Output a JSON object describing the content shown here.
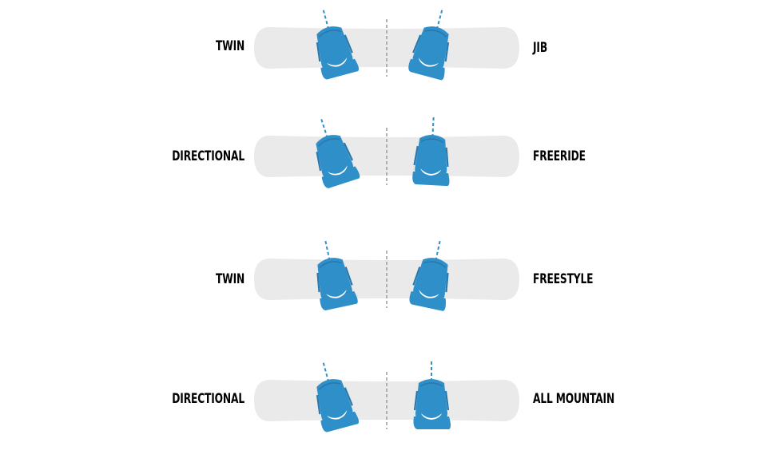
{
  "colors": {
    "accent": "#2f8fc8",
    "board": "#eaeaea",
    "binding_dark": "#2a78ad",
    "binding_light": "#d9eaf5",
    "centerline": "#9a9a9a"
  },
  "rows": [
    {
      "left_label": "TWIN",
      "right_label": "JIB",
      "front_angle_deg": 15,
      "back_angle_deg": 15
    },
    {
      "left_label": "DIRECTIONAL",
      "right_label": "FREERIDE",
      "front_angle_deg": 18,
      "back_angle_deg": 3
    },
    {
      "left_label": "TWIN",
      "right_label": "FREESTYLE",
      "front_angle_deg": 12,
      "back_angle_deg": 12
    },
    {
      "left_label": "DIRECTIONAL",
      "right_label": "ALL MOUNTAIN",
      "front_angle_deg": 15,
      "back_angle_deg": 0
    }
  ]
}
